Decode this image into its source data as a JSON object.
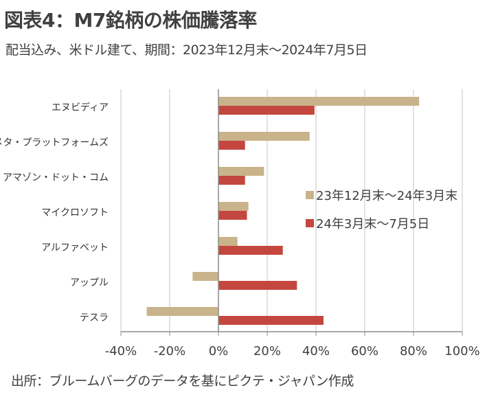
{
  "title": "図表4：M7銘柄の株価騰落率",
  "subtitle": "配当込み、米ドル建て、期間：2023年12月末～2024年7月5日",
  "footer": "出所：ブルームバーグのデータを基にピクテ・ジャパン作成",
  "colors": {
    "series1": "#c9b38a",
    "series2": "#c4473f",
    "grid": "#d9d9d9",
    "axis": "#8c8c8c"
  },
  "chart_data": {
    "type": "bar",
    "orientation": "horizontal",
    "categories": [
      "エヌビディア",
      "メタ・プラットフォームズ",
      "アマゾン・ドット・コム",
      "マイクロソフト",
      "アルファベット",
      "アップル",
      "テスラ"
    ],
    "series": [
      {
        "name": "23年12月末～24年3月末",
        "values": [
          82.3,
          37.4,
          18.7,
          12.3,
          7.8,
          -10.6,
          -29.4
        ]
      },
      {
        "name": "24年3月末～7月5日",
        "values": [
          39.4,
          10.9,
          10.9,
          11.7,
          26.4,
          32.2,
          43.1
        ]
      }
    ],
    "xlim": [
      -40,
      100
    ],
    "ticks": [
      -40,
      -20,
      0,
      20,
      40,
      60,
      80,
      100
    ],
    "tick_labels": [
      "-40%",
      "-20%",
      "0%",
      "20%",
      "40%",
      "60%",
      "80%",
      "100%"
    ],
    "grid": true,
    "legend": "center-right"
  }
}
